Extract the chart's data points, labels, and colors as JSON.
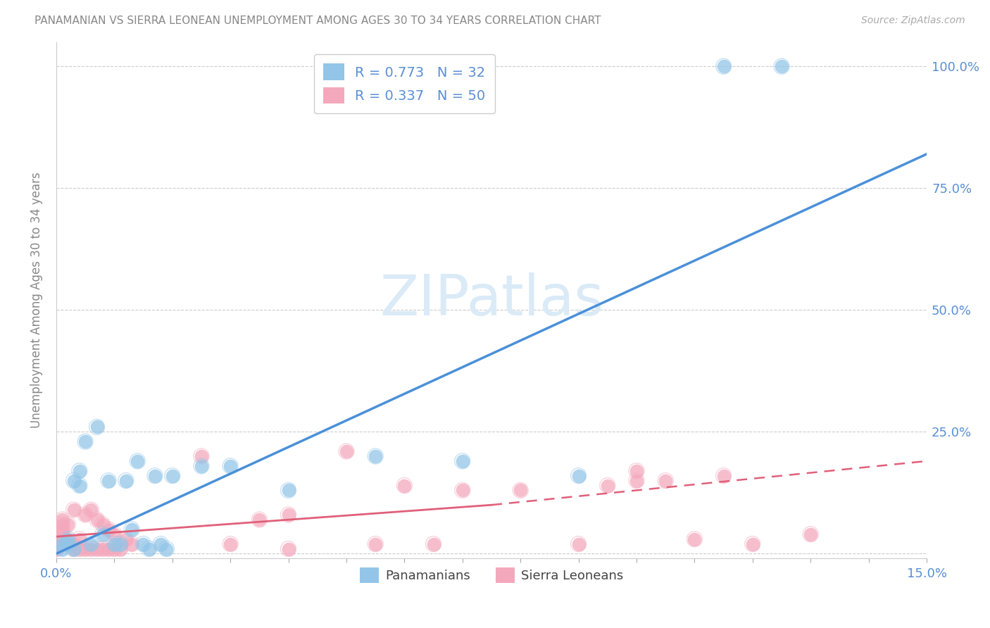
{
  "title": "PANAMANIAN VS SIERRA LEONEAN UNEMPLOYMENT AMONG AGES 30 TO 34 YEARS CORRELATION CHART",
  "source": "Source: ZipAtlas.com",
  "ylabel": "Unemployment Among Ages 30 to 34 years",
  "xlim": [
    0.0,
    0.15
  ],
  "ylim": [
    -0.01,
    1.05
  ],
  "blue_color": "#92c5e8",
  "pink_color": "#f4a8bc",
  "blue_line_color": "#4a90d9",
  "pink_line_color": "#e0607a",
  "pink_dash_color": "#e08098",
  "title_color": "#888888",
  "axis_label_color": "#5a8fd4",
  "R_blue": 0.773,
  "N_blue": 32,
  "R_pink": 0.337,
  "N_pink": 50,
  "legend_labels": [
    "Panamanians",
    "Sierra Leoneans"
  ],
  "blue_x": [
    0.001,
    0.001,
    0.002,
    0.002,
    0.003,
    0.003,
    0.004,
    0.004,
    0.005,
    0.006,
    0.007,
    0.008,
    0.009,
    0.01,
    0.011,
    0.012,
    0.013,
    0.014,
    0.015,
    0.016,
    0.017,
    0.018,
    0.019,
    0.02,
    0.025,
    0.03,
    0.04,
    0.055,
    0.07,
    0.09,
    0.115,
    0.125
  ],
  "blue_y": [
    0.01,
    0.02,
    0.02,
    0.03,
    0.01,
    0.15,
    0.14,
    0.17,
    0.23,
    0.02,
    0.26,
    0.04,
    0.15,
    0.02,
    0.02,
    0.15,
    0.05,
    0.19,
    0.02,
    0.01,
    0.16,
    0.02,
    0.01,
    0.16,
    0.18,
    0.18,
    0.13,
    0.2,
    0.19,
    0.16,
    1.0,
    1.0
  ],
  "pink_x": [
    0.0,
    0.0,
    0.0,
    0.001,
    0.001,
    0.001,
    0.001,
    0.002,
    0.002,
    0.002,
    0.003,
    0.003,
    0.003,
    0.004,
    0.004,
    0.005,
    0.005,
    0.006,
    0.006,
    0.007,
    0.007,
    0.008,
    0.008,
    0.009,
    0.009,
    0.01,
    0.01,
    0.011,
    0.012,
    0.013,
    0.025,
    0.03,
    0.035,
    0.04,
    0.04,
    0.05,
    0.055,
    0.06,
    0.065,
    0.07,
    0.08,
    0.09,
    0.095,
    0.1,
    0.1,
    0.105,
    0.11,
    0.115,
    0.12,
    0.13
  ],
  "pink_y": [
    0.01,
    0.02,
    0.03,
    0.04,
    0.05,
    0.06,
    0.07,
    0.02,
    0.03,
    0.06,
    0.01,
    0.02,
    0.09,
    0.01,
    0.03,
    0.01,
    0.08,
    0.01,
    0.09,
    0.01,
    0.07,
    0.01,
    0.06,
    0.01,
    0.05,
    0.01,
    0.04,
    0.01,
    0.03,
    0.02,
    0.2,
    0.02,
    0.07,
    0.01,
    0.08,
    0.21,
    0.02,
    0.14,
    0.02,
    0.13,
    0.13,
    0.02,
    0.14,
    0.15,
    0.17,
    0.15,
    0.03,
    0.16,
    0.02,
    0.04
  ],
  "blue_line_x": [
    0.0,
    0.15
  ],
  "blue_line_y": [
    0.0,
    0.82
  ],
  "pink_solid_line_x": [
    0.0,
    0.075
  ],
  "pink_solid_line_y": [
    0.035,
    0.1
  ],
  "pink_dash_line_x": [
    0.075,
    0.15
  ],
  "pink_dash_line_y": [
    0.1,
    0.19
  ],
  "grid_color": "#cccccc",
  "background_color": "#ffffff",
  "watermark_color": "#daeaf7",
  "right_ytick_labels": [
    "",
    "25.0%",
    "50.0%",
    "75.0%",
    "100.0%"
  ],
  "right_ytick_positions": [
    0.0,
    0.25,
    0.5,
    0.75,
    1.0
  ]
}
